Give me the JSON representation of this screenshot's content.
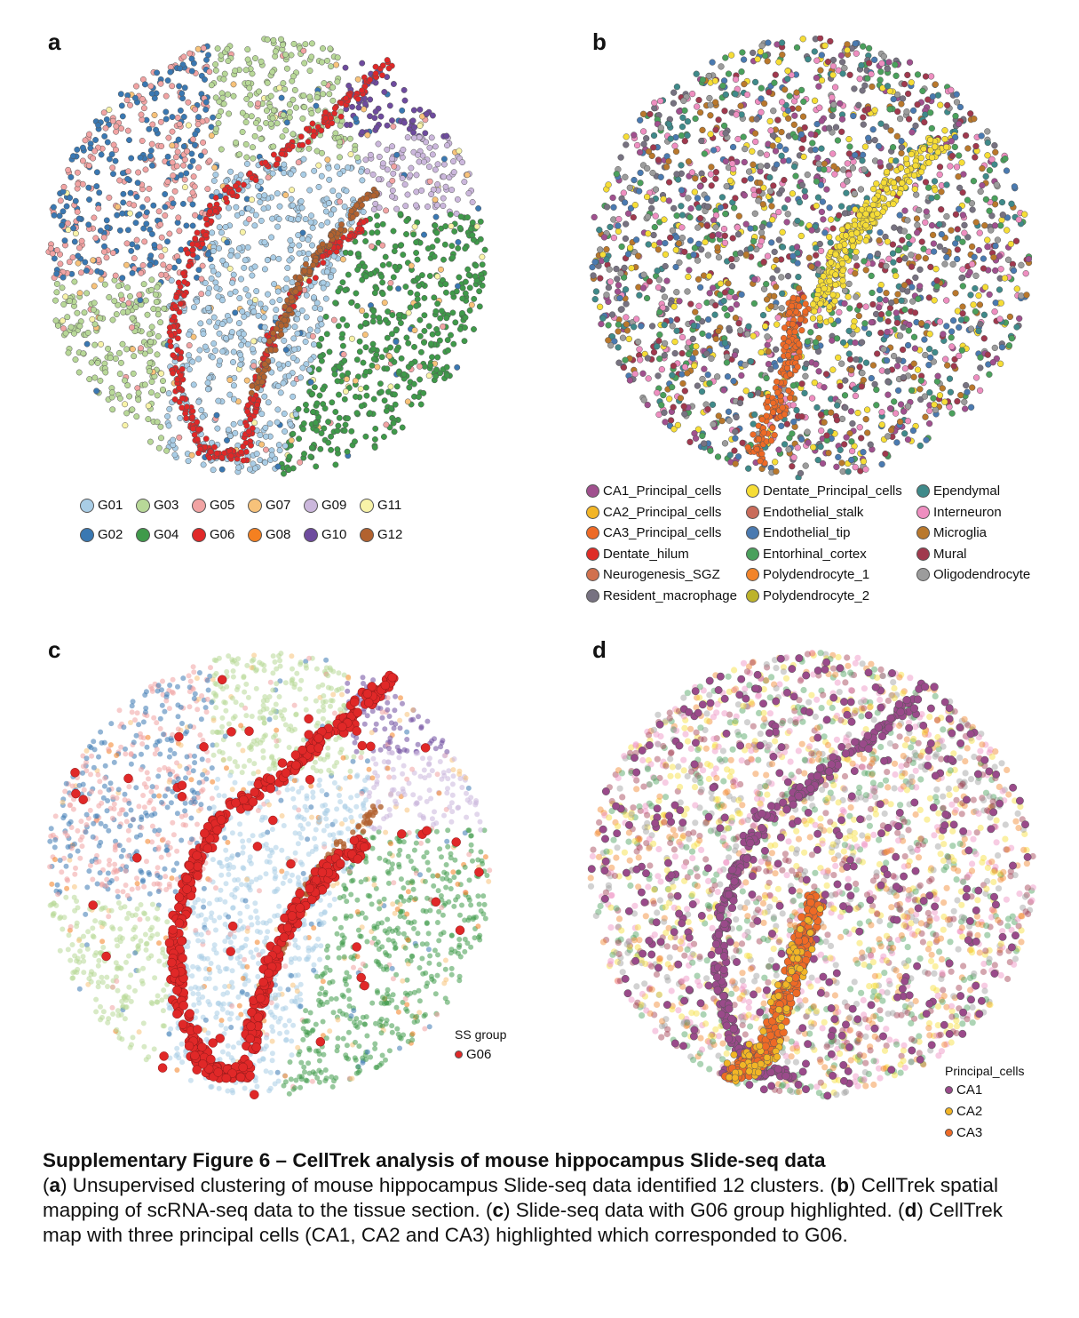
{
  "figure": {
    "panels": {
      "a": {
        "letter": "a"
      },
      "b": {
        "letter": "b"
      },
      "c": {
        "letter": "c"
      },
      "d": {
        "letter": "d"
      }
    }
  },
  "caption": {
    "title": "Supplementary Figure 6 – CellTrek analysis of mouse hippocampus Slide-seq data",
    "p1": "(",
    "l_a": "a",
    "t_a": ") Unsupervised clustering of mouse hippocampus Slide-seq data identified 12 clusters. (",
    "l_b": "b",
    "t_b": ") CellTrek spatial mapping of scRNA-seq data to the tissue section. (",
    "l_c": "c",
    "t_c": ") Slide-seq data with G06 group highlighted. (",
    "l_d": "d",
    "t_d": ") CellTrek map with three principal cells (CA1, CA2 and CA3) highlighted which corresponded to G06."
  },
  "chart_data": [
    {
      "panel": "a",
      "type": "scatter",
      "title": "",
      "xlabel": "",
      "ylabel": "",
      "grid": false,
      "legend_placement": "bottom",
      "series": [
        {
          "name": "G01",
          "color": "#a9cde6"
        },
        {
          "name": "G02",
          "color": "#3a78b2"
        },
        {
          "name": "G03",
          "color": "#b8d898"
        },
        {
          "name": "G04",
          "color": "#3f9a4a"
        },
        {
          "name": "G05",
          "color": "#f1a3a3"
        },
        {
          "name": "G06",
          "color": "#e02828"
        },
        {
          "name": "G07",
          "color": "#f7c27a"
        },
        {
          "name": "G08",
          "color": "#f48020"
        },
        {
          "name": "G09",
          "color": "#cbb7dc"
        },
        {
          "name": "G10",
          "color": "#6e4b9e"
        },
        {
          "name": "G11",
          "color": "#f8f3a8"
        },
        {
          "name": "G12",
          "color": "#b2622f"
        }
      ]
    },
    {
      "panel": "b",
      "type": "scatter",
      "title": "",
      "xlabel": "",
      "ylabel": "",
      "grid": false,
      "legend_placement": "bottom",
      "series": [
        {
          "name": "CA1_Principal_cells",
          "color": "#a0508e"
        },
        {
          "name": "CA2_Principal_cells",
          "color": "#f2b526"
        },
        {
          "name": "CA3_Principal_cells",
          "color": "#ee6a26"
        },
        {
          "name": "Dentate_hilum",
          "color": "#de2d26"
        },
        {
          "name": "Neurogenesis_SGZ",
          "color": "#d1714e"
        },
        {
          "name": "Resident_macrophage",
          "color": "#777281"
        },
        {
          "name": "Dentate_Principal_cells",
          "color": "#f6dd36"
        },
        {
          "name": "Endothelial_stalk",
          "color": "#c96b5a"
        },
        {
          "name": "Endothelial_tip",
          "color": "#4a7ab0"
        },
        {
          "name": "Entorhinal_cortex",
          "color": "#4aa05c"
        },
        {
          "name": "Polydendrocyte_1",
          "color": "#f2842a"
        },
        {
          "name": "Polydendrocyte_2",
          "color": "#bdb32a"
        },
        {
          "name": "Ependymal",
          "color": "#3f8a8a"
        },
        {
          "name": "Interneuron",
          "color": "#ee8ec0"
        },
        {
          "name": "Microglia",
          "color": "#b9782c"
        },
        {
          "name": "Mural",
          "color": "#a0394e"
        },
        {
          "name": "Oligodendrocyte",
          "color": "#9c9c9c"
        }
      ]
    },
    {
      "panel": "c",
      "type": "scatter",
      "title": "",
      "xlabel": "",
      "ylabel": "",
      "grid": false,
      "legend_title": "SS group",
      "legend_placement": "right",
      "series": [
        {
          "name": "G06",
          "color": "#e02828"
        }
      ]
    },
    {
      "panel": "d",
      "type": "scatter",
      "title": "",
      "xlabel": "",
      "ylabel": "",
      "grid": false,
      "legend_title": "Principal_cells",
      "legend_placement": "bottom-right",
      "series": [
        {
          "name": "CA1",
          "color": "#9a4a8a"
        },
        {
          "name": "CA2",
          "color": "#f2b526"
        },
        {
          "name": "CA3",
          "color": "#ee6a26"
        }
      ]
    }
  ]
}
